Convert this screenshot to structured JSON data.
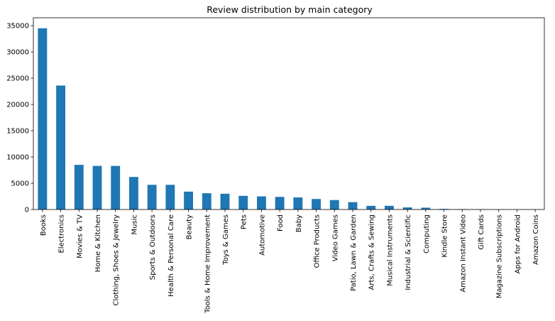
{
  "chart_data": {
    "type": "bar",
    "title": "Review distribution by main category",
    "xlabel": "",
    "ylabel": "",
    "ylim": [
      0,
      36500
    ],
    "yticks": [
      0,
      5000,
      10000,
      15000,
      20000,
      25000,
      30000,
      35000
    ],
    "ytick_labels": [
      "0",
      "5000",
      "10000",
      "15000",
      "20000",
      "25000",
      "30000",
      "35000"
    ],
    "grid": false,
    "legend": "none",
    "bar_color": "#1f77b4",
    "categories": [
      "Books",
      "Electronics",
      "Movies & TV",
      "Home & Kitchen",
      "Clothing, Shoes & Jewelry",
      "Music",
      "Sports & Outdoors",
      "Health & Personal Care",
      "Beauty",
      "Tools & Home Improvement",
      "Toys & Games",
      "Pets",
      "Automotive",
      "Food",
      "Baby",
      "Office Products",
      "Video Games",
      "Patio, Lawn & Garden",
      "Arts, Crafts & Sewing",
      "Musical Instruments",
      "Industrial & Scientific",
      "Computing",
      "Kindle Store",
      "Amazon Instant Video",
      "Gift Cards",
      "Magazine Subscriptions",
      "Apps for Android",
      "Amazon Coins"
    ],
    "values": [
      34500,
      23600,
      8500,
      8300,
      8300,
      6200,
      4700,
      4700,
      3400,
      3100,
      3000,
      2600,
      2500,
      2400,
      2300,
      2000,
      1800,
      1400,
      700,
      700,
      400,
      350,
      120,
      80,
      60,
      10,
      5,
      2
    ]
  }
}
